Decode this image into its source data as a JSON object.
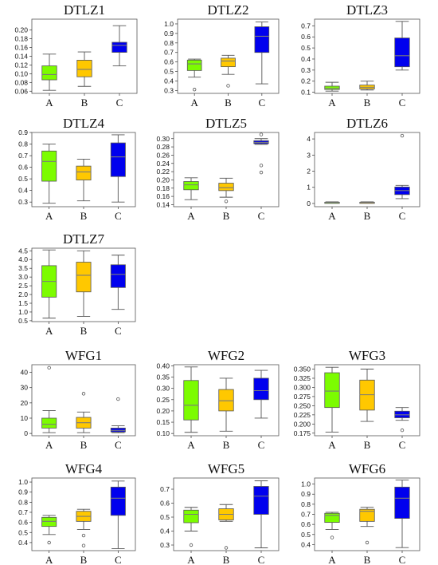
{
  "colors": {
    "A": "#7cfc00",
    "B": "#ffc800",
    "C": "#0000ee"
  },
  "chart_data": [
    {
      "type": "boxplot",
      "title": "DTLZ1",
      "categories": [
        "A",
        "B",
        "C"
      ],
      "ylim": [
        0.055,
        0.225
      ],
      "yticks": [
        0.06,
        0.08,
        0.1,
        0.12,
        0.14,
        0.16,
        0.18,
        0.2
      ],
      "tick_decimals": 2,
      "boxes": [
        {
          "category": "A",
          "whislo": 0.062,
          "q1": 0.086,
          "median": 0.098,
          "q3": 0.118,
          "whishi": 0.145,
          "fliers": []
        },
        {
          "category": "B",
          "whislo": 0.071,
          "q1": 0.093,
          "median": 0.11,
          "q3": 0.131,
          "whishi": 0.15,
          "fliers": []
        },
        {
          "category": "C",
          "whislo": 0.118,
          "q1": 0.149,
          "median": 0.165,
          "q3": 0.172,
          "whishi": 0.21,
          "fliers": []
        }
      ]
    },
    {
      "type": "boxplot",
      "title": "DTLZ2",
      "categories": [
        "A",
        "B",
        "C"
      ],
      "ylim": [
        0.27,
        1.05
      ],
      "yticks": [
        0.3,
        0.4,
        0.5,
        0.6,
        0.7,
        0.8,
        0.9,
        1.0
      ],
      "tick_decimals": 1,
      "boxes": [
        {
          "category": "A",
          "whislo": 0.44,
          "q1": 0.51,
          "median": 0.58,
          "q3": 0.62,
          "whishi": 0.63,
          "fliers": [
            0.31
          ]
        },
        {
          "category": "B",
          "whislo": 0.47,
          "q1": 0.55,
          "median": 0.61,
          "q3": 0.64,
          "whishi": 0.67,
          "fliers": [
            0.35
          ]
        },
        {
          "category": "C",
          "whislo": 0.37,
          "q1": 0.7,
          "median": 0.87,
          "q3": 0.97,
          "whishi": 1.02,
          "fliers": []
        }
      ]
    },
    {
      "type": "boxplot",
      "title": "DTLZ3",
      "categories": [
        "A",
        "B",
        "C"
      ],
      "ylim": [
        0.09,
        0.76
      ],
      "yticks": [
        0.1,
        0.2,
        0.3,
        0.4,
        0.5,
        0.6,
        0.7
      ],
      "tick_decimals": 1,
      "boxes": [
        {
          "category": "A",
          "whislo": 0.11,
          "q1": 0.125,
          "median": 0.135,
          "q3": 0.155,
          "whishi": 0.19,
          "fliers": []
        },
        {
          "category": "B",
          "whislo": 0.12,
          "q1": 0.13,
          "median": 0.145,
          "q3": 0.165,
          "whishi": 0.2,
          "fliers": []
        },
        {
          "category": "C",
          "whislo": 0.3,
          "q1": 0.33,
          "median": 0.43,
          "q3": 0.59,
          "whishi": 0.74,
          "fliers": []
        }
      ]
    },
    {
      "type": "boxplot",
      "title": "DTLZ4",
      "categories": [
        "A",
        "B",
        "C"
      ],
      "ylim": [
        0.26,
        0.9
      ],
      "yticks": [
        0.3,
        0.4,
        0.5,
        0.6,
        0.7,
        0.8,
        0.9
      ],
      "tick_decimals": 1,
      "boxes": [
        {
          "category": "A",
          "whislo": 0.29,
          "q1": 0.48,
          "median": 0.65,
          "q3": 0.74,
          "whishi": 0.8,
          "fliers": []
        },
        {
          "category": "B",
          "whislo": 0.31,
          "q1": 0.49,
          "median": 0.56,
          "q3": 0.61,
          "whishi": 0.67,
          "fliers": []
        },
        {
          "category": "C",
          "whislo": 0.3,
          "q1": 0.52,
          "median": 0.69,
          "q3": 0.81,
          "whishi": 0.88,
          "fliers": []
        }
      ]
    },
    {
      "type": "boxplot",
      "title": "DTLZ5",
      "categories": [
        "A",
        "B",
        "C"
      ],
      "ylim": [
        0.135,
        0.315
      ],
      "yticks": [
        0.14,
        0.16,
        0.18,
        0.2,
        0.22,
        0.24,
        0.26,
        0.28,
        0.3
      ],
      "tick_decimals": 2,
      "boxes": [
        {
          "category": "A",
          "whislo": 0.152,
          "q1": 0.176,
          "median": 0.188,
          "q3": 0.196,
          "whishi": 0.205,
          "fliers": []
        },
        {
          "category": "B",
          "whislo": 0.158,
          "q1": 0.174,
          "median": 0.181,
          "q3": 0.192,
          "whishi": 0.204,
          "fliers": [
            0.148
          ]
        },
        {
          "category": "C",
          "whislo": 0.286,
          "q1": 0.288,
          "median": 0.291,
          "q3": 0.295,
          "whishi": 0.3,
          "fliers": [
            0.31,
            0.235,
            0.218
          ]
        }
      ]
    },
    {
      "type": "boxplot",
      "title": "DTLZ6",
      "categories": [
        "A",
        "B",
        "C"
      ],
      "ylim": [
        -0.2,
        4.4
      ],
      "yticks": [
        0,
        1,
        2,
        3,
        4
      ],
      "tick_decimals": 0,
      "boxes": [
        {
          "category": "A",
          "whislo": 0.02,
          "q1": 0.04,
          "median": 0.06,
          "q3": 0.08,
          "whishi": 0.1,
          "fliers": []
        },
        {
          "category": "B",
          "whislo": 0.02,
          "q1": 0.04,
          "median": 0.06,
          "q3": 0.08,
          "whishi": 0.1,
          "fliers": []
        },
        {
          "category": "C",
          "whislo": 0.3,
          "q1": 0.55,
          "median": 0.8,
          "q3": 1.02,
          "whishi": 1.12,
          "fliers": [
            4.2
          ]
        }
      ]
    },
    {
      "type": "boxplot",
      "title": "DTLZ7",
      "categories": [
        "A",
        "B",
        "C"
      ],
      "ylim": [
        0.45,
        4.65
      ],
      "yticks": [
        0.5,
        1.0,
        1.5,
        2.0,
        2.5,
        3.0,
        3.5,
        4.0,
        4.5
      ],
      "tick_decimals": 1,
      "boxes": [
        {
          "category": "A",
          "whislo": 0.65,
          "q1": 1.85,
          "median": 2.75,
          "q3": 3.65,
          "whishi": 4.55,
          "fliers": []
        },
        {
          "category": "B",
          "whislo": 0.75,
          "q1": 2.15,
          "median": 3.1,
          "q3": 3.85,
          "whishi": 4.5,
          "fliers": []
        },
        {
          "category": "C",
          "whislo": 1.15,
          "q1": 2.4,
          "median": 3.15,
          "q3": 3.7,
          "whishi": 4.25,
          "fliers": []
        }
      ]
    },
    {
      "type": "boxplot",
      "title": "WFG1",
      "categories": [
        "A",
        "B",
        "C"
      ],
      "ylim": [
        -1.5,
        45.0
      ],
      "yticks": [
        0,
        10,
        20,
        30,
        40
      ],
      "tick_decimals": 0,
      "boxes": [
        {
          "category": "A",
          "whislo": 0.5,
          "q1": 3.5,
          "median": 6.0,
          "q3": 10.0,
          "whishi": 15.0,
          "fliers": [
            43.0
          ]
        },
        {
          "category": "B",
          "whislo": 0.5,
          "q1": 3.5,
          "median": 7.0,
          "q3": 10.5,
          "whishi": 14.0,
          "fliers": [
            26.0
          ]
        },
        {
          "category": "C",
          "whislo": 0.5,
          "q1": 1.0,
          "median": 2.0,
          "q3": 3.5,
          "whishi": 5.0,
          "fliers": [
            22.5
          ]
        }
      ]
    },
    {
      "type": "boxplot",
      "title": "WFG2",
      "categories": [
        "A",
        "B",
        "C"
      ],
      "ylim": [
        0.09,
        0.405
      ],
      "yticks": [
        0.1,
        0.15,
        0.2,
        0.25,
        0.3,
        0.35,
        0.4
      ],
      "tick_decimals": 2,
      "boxes": [
        {
          "category": "A",
          "whislo": 0.105,
          "q1": 0.16,
          "median": 0.225,
          "q3": 0.335,
          "whishi": 0.395,
          "fliers": []
        },
        {
          "category": "B",
          "whislo": 0.11,
          "q1": 0.2,
          "median": 0.245,
          "q3": 0.295,
          "whishi": 0.345,
          "fliers": []
        },
        {
          "category": "C",
          "whislo": 0.168,
          "q1": 0.25,
          "median": 0.29,
          "q3": 0.345,
          "whishi": 0.38,
          "fliers": []
        }
      ]
    },
    {
      "type": "boxplot",
      "title": "WFG3",
      "categories": [
        "A",
        "B",
        "C"
      ],
      "ylim": [
        0.168,
        0.362
      ],
      "yticks": [
        0.175,
        0.2,
        0.225,
        0.25,
        0.275,
        0.3,
        0.325,
        0.35
      ],
      "tick_decimals": 3,
      "boxes": [
        {
          "category": "A",
          "whislo": 0.178,
          "q1": 0.245,
          "median": 0.29,
          "q3": 0.34,
          "whishi": 0.355,
          "fliers": []
        },
        {
          "category": "B",
          "whislo": 0.207,
          "q1": 0.238,
          "median": 0.28,
          "q3": 0.32,
          "whishi": 0.35,
          "fliers": []
        },
        {
          "category": "C",
          "whislo": 0.21,
          "q1": 0.217,
          "median": 0.225,
          "q3": 0.235,
          "whishi": 0.245,
          "fliers": [
            0.183
          ]
        }
      ]
    },
    {
      "type": "boxplot",
      "title": "WFG4",
      "categories": [
        "A",
        "B",
        "C"
      ],
      "ylim": [
        0.32,
        1.04
      ],
      "yticks": [
        0.4,
        0.5,
        0.6,
        0.7,
        0.8,
        0.9,
        1.0
      ],
      "tick_decimals": 1,
      "boxes": [
        {
          "category": "A",
          "whislo": 0.48,
          "q1": 0.56,
          "median": 0.61,
          "q3": 0.65,
          "whishi": 0.67,
          "fliers": [
            0.4
          ]
        },
        {
          "category": "B",
          "whislo": 0.53,
          "q1": 0.61,
          "median": 0.66,
          "q3": 0.71,
          "whishi": 0.73,
          "fliers": [
            0.47,
            0.37
          ]
        },
        {
          "category": "C",
          "whislo": 0.34,
          "q1": 0.67,
          "median": 0.84,
          "q3": 0.95,
          "whishi": 1.01,
          "fliers": []
        }
      ]
    },
    {
      "type": "boxplot",
      "title": "WFG5",
      "categories": [
        "A",
        "B",
        "C"
      ],
      "ylim": [
        0.26,
        0.78
      ],
      "yticks": [
        0.3,
        0.4,
        0.5,
        0.6,
        0.7
      ],
      "tick_decimals": 1,
      "boxes": [
        {
          "category": "A",
          "whislo": 0.4,
          "q1": 0.46,
          "median": 0.52,
          "q3": 0.55,
          "whishi": 0.57,
          "fliers": [
            0.3
          ]
        },
        {
          "category": "B",
          "whislo": 0.47,
          "q1": 0.48,
          "median": 0.52,
          "q3": 0.56,
          "whishi": 0.59,
          "fliers": [
            0.28
          ]
        },
        {
          "category": "C",
          "whislo": 0.28,
          "q1": 0.52,
          "median": 0.65,
          "q3": 0.72,
          "whishi": 0.76,
          "fliers": []
        }
      ]
    },
    {
      "type": "boxplot",
      "title": "WFG6",
      "categories": [
        "A",
        "B",
        "C"
      ],
      "ylim": [
        0.34,
        1.06
      ],
      "yticks": [
        0.4,
        0.5,
        0.6,
        0.7,
        0.8,
        0.9,
        1.0
      ],
      "tick_decimals": 1,
      "boxes": [
        {
          "category": "A",
          "whislo": 0.55,
          "q1": 0.62,
          "median": 0.69,
          "q3": 0.71,
          "whishi": 0.72,
          "fliers": [
            0.47
          ]
        },
        {
          "category": "B",
          "whislo": 0.58,
          "q1": 0.63,
          "median": 0.73,
          "q3": 0.75,
          "whishi": 0.77,
          "fliers": [
            0.42
          ]
        },
        {
          "category": "C",
          "whislo": 0.37,
          "q1": 0.66,
          "median": 0.86,
          "q3": 0.97,
          "whishi": 1.04,
          "fliers": []
        }
      ]
    }
  ]
}
